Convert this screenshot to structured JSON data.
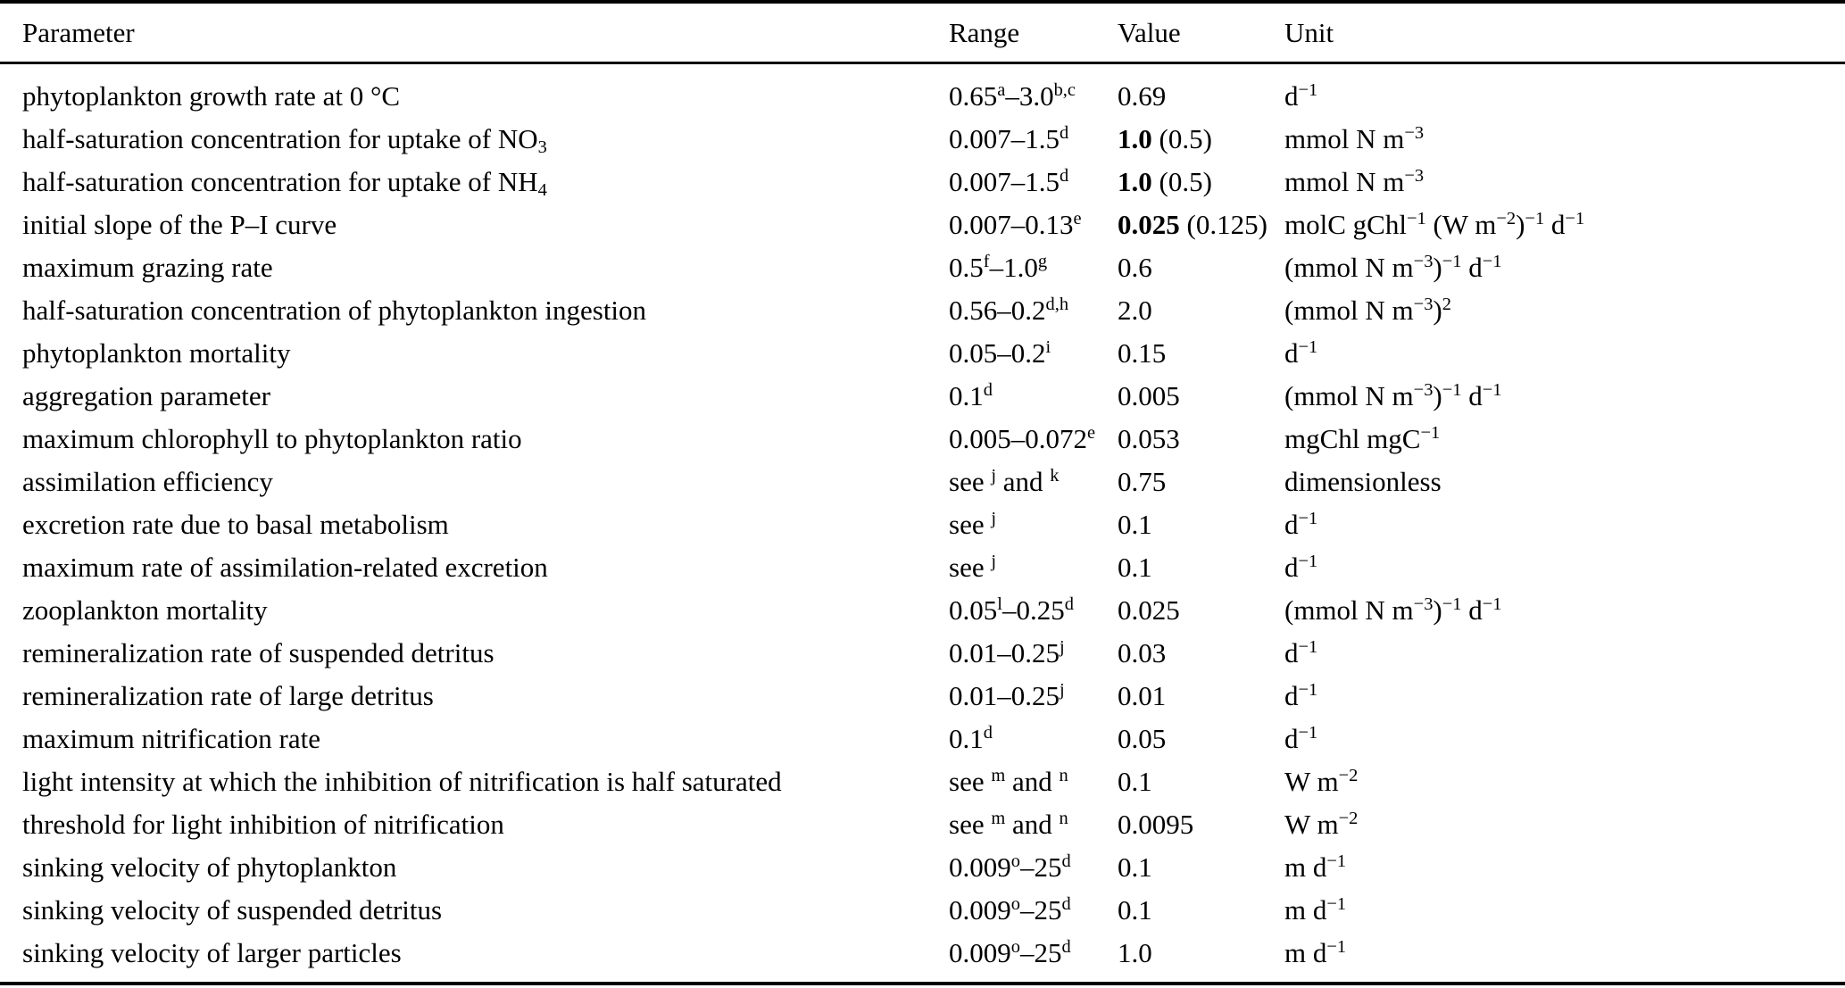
{
  "table": {
    "columns": [
      "Parameter",
      "Range",
      "Value",
      "Unit"
    ],
    "rows": [
      {
        "parameter": "phytoplankton growth rate at 0 °C",
        "range": "0.65^{a}–3.0^{b,c}",
        "value": "0.69",
        "unit": "d^{−1}"
      },
      {
        "parameter": "half-saturation concentration for uptake of NO_{3}",
        "range": "0.007–1.5^{d}",
        "value": "**1.0** (0.5)",
        "unit": "mmol N m^{−3}"
      },
      {
        "parameter": "half-saturation concentration for uptake of NH_{4}",
        "range": "0.007–1.5^{d}",
        "value": "**1.0** (0.5)",
        "unit": "mmol N m^{−3}"
      },
      {
        "parameter": "initial slope of the P–I curve",
        "range": "0.007–0.13^{e}",
        "value": "**0.025** (0.125)",
        "unit": "molC gChl^{−1} (W m^{−2})^{−1} d^{−1}"
      },
      {
        "parameter": "maximum grazing rate",
        "range": "0.5^{f}–1.0^{g}",
        "value": "0.6",
        "unit": "(mmol N m^{−3})^{−1} d^{−1}"
      },
      {
        "parameter": "half-saturation concentration of phytoplankton ingestion",
        "range": "0.56–0.2^{d,h}",
        "value": "2.0",
        "unit": "(mmol N m^{−3})^{2}"
      },
      {
        "parameter": "phytoplankton mortality",
        "range": "0.05–0.2^{i}",
        "value": "0.15",
        "unit": "d^{−1}"
      },
      {
        "parameter": "aggregation parameter",
        "range": "0.1^{d}",
        "value": "0.005",
        "unit": "(mmol N m^{−3})^{−1} d^{−1}"
      },
      {
        "parameter": "maximum chlorophyll to phytoplankton ratio",
        "range": "0.005–0.072^{e}",
        "value": "0.053",
        "unit": "mgChl mgC^{−1}"
      },
      {
        "parameter": "assimilation efficiency",
        "range": "see ^{j} and ^{k}",
        "value": "0.75",
        "unit": "dimensionless"
      },
      {
        "parameter": "excretion rate due to basal metabolism",
        "range": "see ^{j}",
        "value": "0.1",
        "unit": "d^{−1}"
      },
      {
        "parameter": "maximum rate of assimilation-related excretion",
        "range": "see ^{j}",
        "value": "0.1",
        "unit": "d^{−1}"
      },
      {
        "parameter": "zooplankton mortality",
        "range": "0.05^{l}–0.25^{d}",
        "value": "0.025",
        "unit": "(mmol N m^{−3})^{−1} d^{−1}"
      },
      {
        "parameter": "remineralization rate of suspended detritus",
        "range": "0.01–0.25^{j}",
        "value": "0.03",
        "unit": "d^{−1}"
      },
      {
        "parameter": "remineralization rate of large detritus",
        "range": "0.01–0.25^{j}",
        "value": "0.01",
        "unit": "d^{−1}"
      },
      {
        "parameter": "maximum nitrification rate",
        "range": "0.1^{d}",
        "value": "0.05",
        "unit": "d^{−1}"
      },
      {
        "parameter": "light intensity at which the inhibition of nitrification is half saturated",
        "range": "see ^{m} and ^{n}",
        "value": "0.1",
        "unit": "W m^{−2}"
      },
      {
        "parameter": "threshold for light inhibition of nitrification",
        "range": "see ^{m} and ^{n}",
        "value": "0.0095",
        "unit": "W m^{−2}"
      },
      {
        "parameter": "sinking velocity of phytoplankton",
        "range": "0.009^{o}–25^{d}",
        "value": "0.1",
        "unit": "m d^{−1}"
      },
      {
        "parameter": "sinking velocity of suspended detritus",
        "range": "0.009^{o}–25^{d}",
        "value": "0.1",
        "unit": "m d^{−1}"
      },
      {
        "parameter": "sinking velocity of larger particles",
        "range": "0.009^{o}–25^{d}",
        "value": "1.0",
        "unit": "m d^{−1}"
      }
    ]
  }
}
